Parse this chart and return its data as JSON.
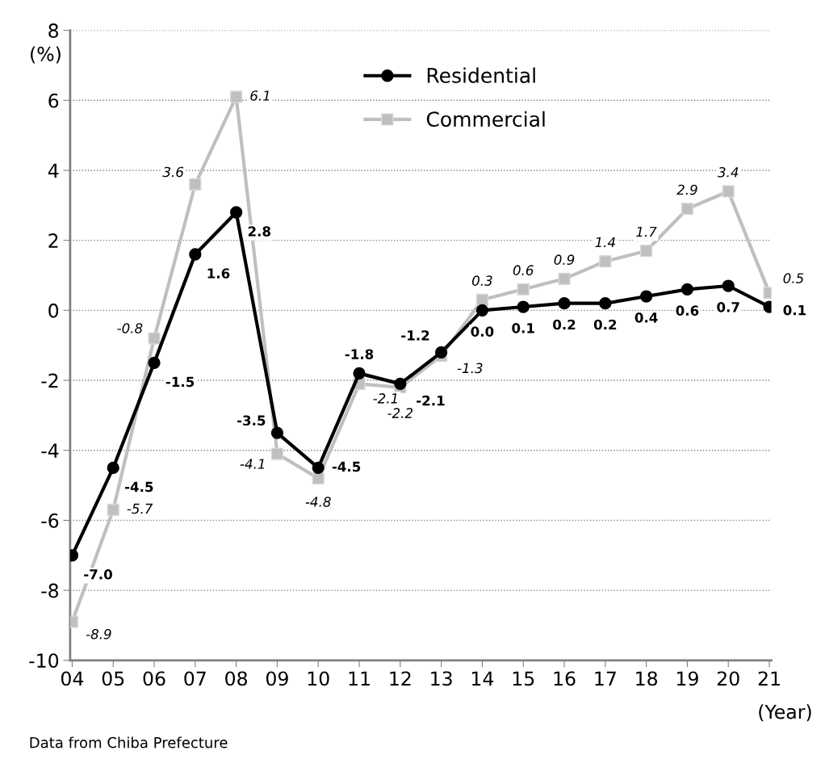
{
  "chart_data": {
    "type": "line",
    "categories": [
      "04",
      "05",
      "06",
      "07",
      "08",
      "09",
      "10",
      "11",
      "12",
      "13",
      "14",
      "15",
      "16",
      "17",
      "18",
      "19",
      "20",
      "21"
    ],
    "series": [
      {
        "name": "Residential",
        "color": "#000000",
        "marker": "circle",
        "values": [
          -7.0,
          -4.5,
          -1.5,
          1.6,
          2.8,
          -3.5,
          -4.5,
          -1.8,
          -2.1,
          -1.2,
          0.0,
          0.1,
          0.2,
          0.2,
          0.4,
          0.6,
          0.7,
          0.1
        ],
        "value_labels": [
          "-7.0",
          "-4.5",
          "-1.5",
          "1.6",
          "2.8",
          "-3.5",
          "-4.5",
          "-1.8",
          "-2.1",
          "-1.2",
          "0.0",
          "0.1",
          "0.2",
          "0.2",
          "0.4",
          "0.6",
          "0.7",
          "0.1"
        ]
      },
      {
        "name": "Commercial",
        "color": "#bfbfbf",
        "marker": "square",
        "values": [
          -8.9,
          -5.7,
          -0.8,
          3.6,
          6.1,
          -4.1,
          -4.8,
          -2.1,
          -2.2,
          -1.3,
          0.3,
          0.6,
          0.9,
          1.4,
          1.7,
          2.9,
          3.4,
          0.5
        ],
        "value_labels": [
          "-8.9",
          "-5.7",
          "-0.8",
          "3.6",
          "6.1",
          "-4.1",
          "-4.8",
          "-2.1",
          "-2.2",
          "-1.3",
          "0.3",
          "0.6",
          "0.9",
          "1.4",
          "1.7",
          "2.9",
          "3.4",
          "0.5"
        ]
      }
    ],
    "ylabel": "(%)",
    "xlabel": "(Year)",
    "ylim": [
      -10,
      8
    ],
    "yticks": [
      -10,
      -8,
      -6,
      -4,
      -2,
      0,
      2,
      4,
      6,
      8
    ],
    "grid": "y",
    "legend": "top",
    "line_style": "solid",
    "annotations": [
      "Data from Chiba Prefecture"
    ]
  }
}
